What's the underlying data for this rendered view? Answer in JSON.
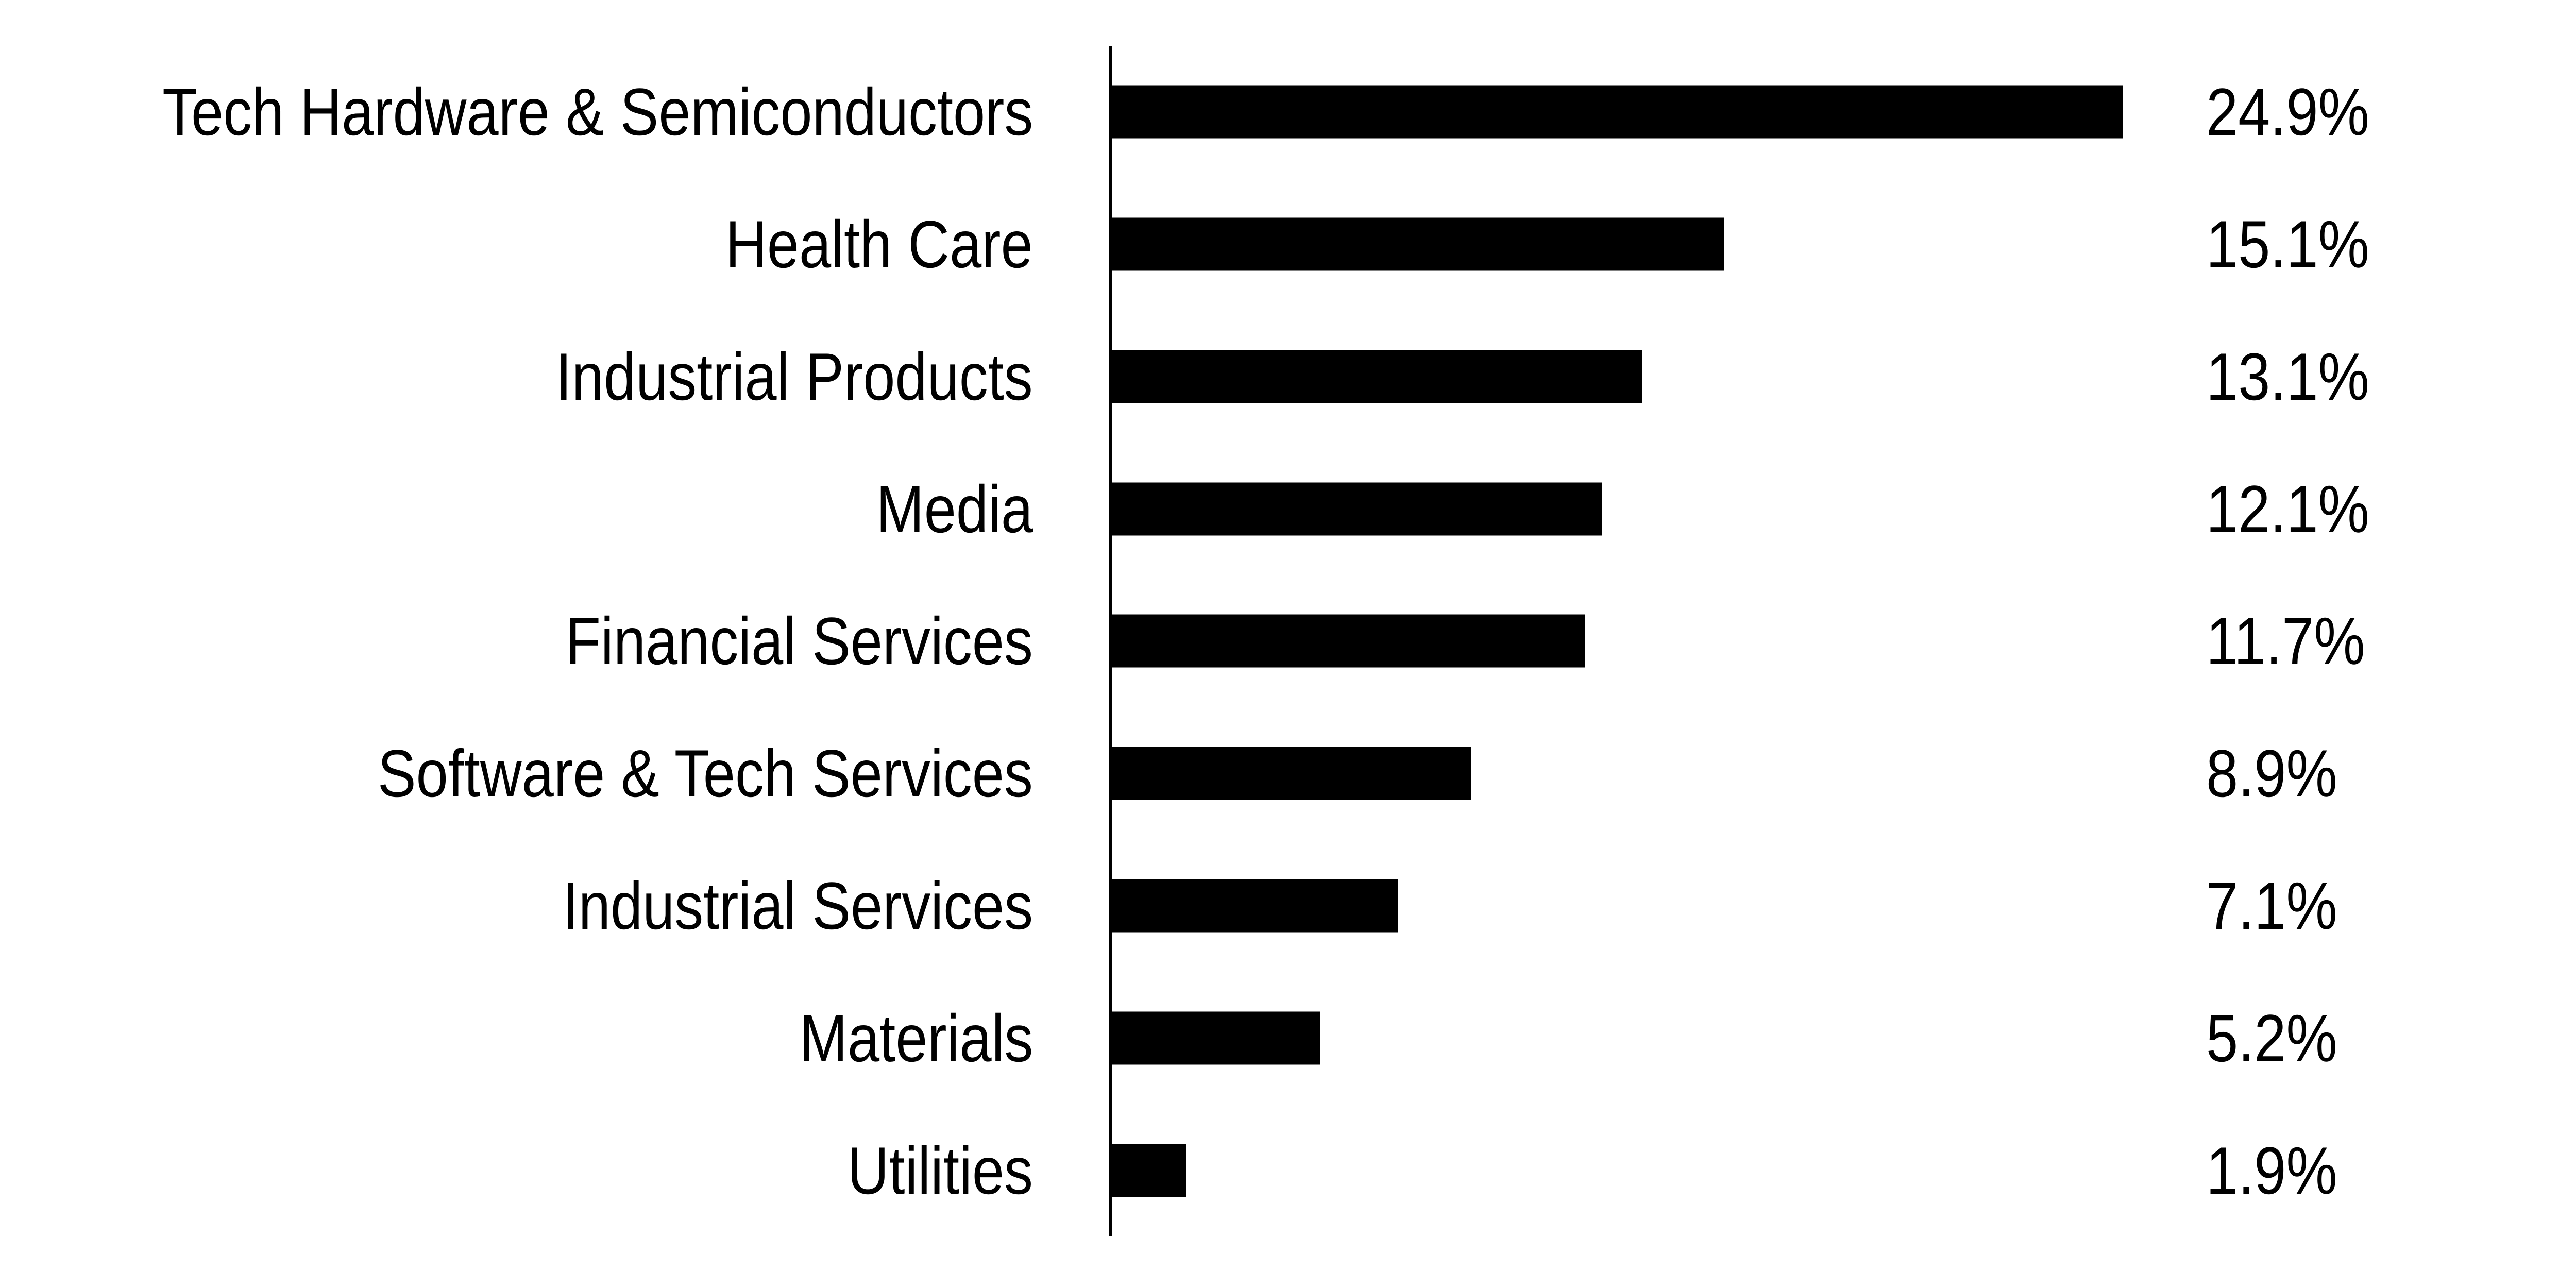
{
  "chart_data": {
    "type": "bar",
    "orientation": "horizontal",
    "title": "",
    "xlabel": "",
    "ylabel": "",
    "categories": [
      "Tech Hardware & Semiconductors",
      "Health Care",
      "Industrial Products",
      "Media",
      "Financial Services",
      "Software & Tech Services",
      "Industrial Services",
      "Materials",
      "Utilities"
    ],
    "values": [
      24.9,
      15.1,
      13.1,
      12.1,
      11.7,
      8.9,
      7.1,
      5.2,
      1.9
    ],
    "value_labels": [
      "24.9%",
      "15.1%",
      "13.1%",
      "12.1%",
      "11.7%",
      "8.9%",
      "7.1%",
      "5.2%",
      "1.9%"
    ],
    "xlim": [
      0,
      26
    ],
    "grid": false,
    "legend": false,
    "value_label_position": "right-of-bars",
    "category_label_position": "left-aligned-right",
    "colors": {
      "bar": "#000000",
      "axis": "#000000",
      "text": "#000000",
      "background": "#ffffff"
    }
  }
}
